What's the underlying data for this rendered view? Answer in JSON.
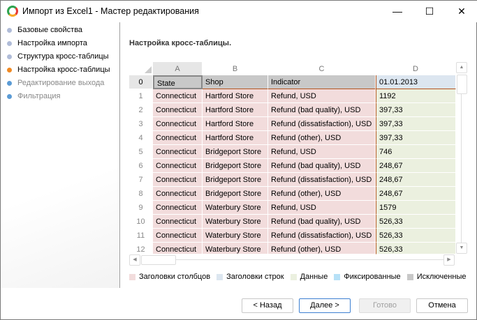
{
  "window": {
    "title": "Импорт из Excel1 - Мастер редактирования",
    "minimize": "—",
    "maximize": "☐",
    "close": "✕"
  },
  "steps": [
    {
      "label": "Базовые свойства",
      "color": "#b0bcd8",
      "state": "done"
    },
    {
      "label": "Настройка импорта",
      "color": "#b0bcd8",
      "state": "done"
    },
    {
      "label": "Структура кросс-таблицы",
      "color": "#b0bcd8",
      "state": "done"
    },
    {
      "label": "Настройка кросс-таблицы",
      "color": "#f08a24",
      "state": "current"
    },
    {
      "label": "Редактирование выхода",
      "color": "#5b9bd5",
      "state": "pending"
    },
    {
      "label": "Фильтрация",
      "color": "#5b9bd5",
      "state": "pending"
    }
  ],
  "heading": "Настройка кросс-таблицы.",
  "grid": {
    "columns": [
      "A",
      "B",
      "C",
      "D"
    ],
    "row_numbers": [
      "0",
      "1",
      "2",
      "3",
      "4",
      "5",
      "6",
      "7",
      "8",
      "9",
      "10",
      "11",
      "12"
    ],
    "rows": [
      [
        "State",
        "Shop",
        "Indicator",
        "01.01.2013"
      ],
      [
        "Connecticut",
        "Hartford Store",
        "Refund, USD",
        "1192"
      ],
      [
        "Connecticut",
        "Hartford Store",
        "Refund (bad quality), USD",
        "397,33"
      ],
      [
        "Connecticut",
        "Hartford Store",
        "Refund (dissatisfaction), USD",
        "397,33"
      ],
      [
        "Connecticut",
        "Hartford Store",
        "Refund (other), USD",
        "397,33"
      ],
      [
        "Connecticut",
        "Bridgeport Store",
        "Refund, USD",
        "746"
      ],
      [
        "Connecticut",
        "Bridgeport Store",
        "Refund (bad quality), USD",
        "248,67"
      ],
      [
        "Connecticut",
        "Bridgeport Store",
        "Refund (dissatisfaction), USD",
        "248,67"
      ],
      [
        "Connecticut",
        "Bridgeport Store",
        "Refund (other), USD",
        "248,67"
      ],
      [
        "Connecticut",
        "Waterbury Store",
        "Refund, USD",
        "1579"
      ],
      [
        "Connecticut",
        "Waterbury Store",
        "Refund (bad quality), USD",
        "526,33"
      ],
      [
        "Connecticut",
        "Waterbury Store",
        "Refund (dissatisfaction), USD",
        "526,33"
      ],
      [
        "Connecticut",
        "Waterbury Store",
        "Refund (other), USD",
        "526,33"
      ]
    ]
  },
  "legend": [
    {
      "label": "Заголовки столбцов",
      "color": "#f2dcdc"
    },
    {
      "label": "Заголовки строк",
      "color": "#dce6f0"
    },
    {
      "label": "Данные",
      "color": "#ebf0df"
    },
    {
      "label": "Фиксированные",
      "color": "#b7e1f7"
    },
    {
      "label": "Исключенные",
      "color": "#c8c8c8"
    }
  ],
  "buttons": {
    "back": "< Назад",
    "next": "Далее >",
    "finish": "Готово",
    "cancel": "Отмена"
  }
}
